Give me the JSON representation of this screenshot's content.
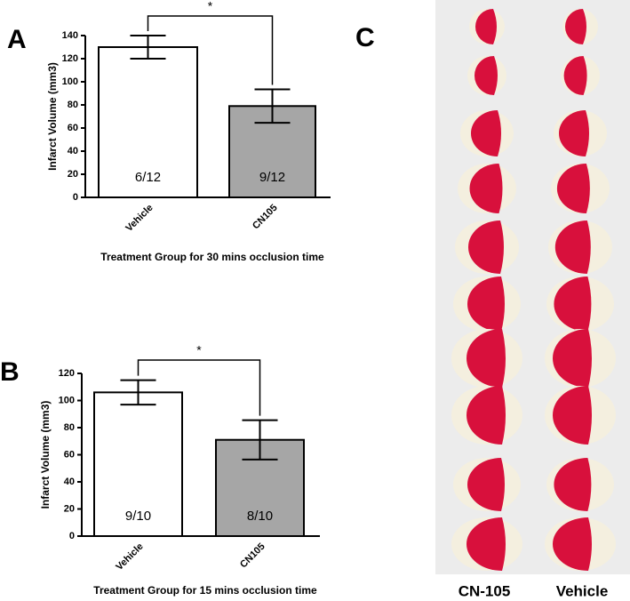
{
  "panel_labels": [
    "A",
    "B",
    "C"
  ],
  "photo": {
    "labels": [
      "CN-105",
      "Vehicle"
    ]
  },
  "chart_data": [
    {
      "type": "bar",
      "x_label": "Treatment Group for 30 mins occlusion time",
      "y_label": "Infarct Volume (mm3)",
      "categories": [
        "Vehicle",
        "CN105"
      ],
      "values": [
        130,
        79
      ],
      "errors": [
        10,
        14.5
      ],
      "colors": [
        "#ffffff",
        "#a6a6a6"
      ],
      "bar_labels": [
        "6/12",
        "9/12"
      ],
      "significance": "*",
      "ylim": [
        0,
        140
      ],
      "yticks": [
        0,
        20,
        40,
        60,
        80,
        100,
        120,
        140
      ]
    },
    {
      "type": "bar",
      "x_label": "Treatment Group for 15 mins occlusion time",
      "y_label": "Infarct Volume (mm3)",
      "categories": [
        "Vehicle",
        "CN105"
      ],
      "values": [
        106,
        71
      ],
      "errors": [
        9,
        14.5
      ],
      "colors": [
        "#ffffff",
        "#a6a6a6"
      ],
      "bar_labels": [
        "9/10",
        "8/10"
      ],
      "significance": "*",
      "ylim": [
        0,
        120
      ],
      "yticks": [
        0,
        20,
        40,
        60,
        80,
        100,
        120
      ]
    }
  ]
}
